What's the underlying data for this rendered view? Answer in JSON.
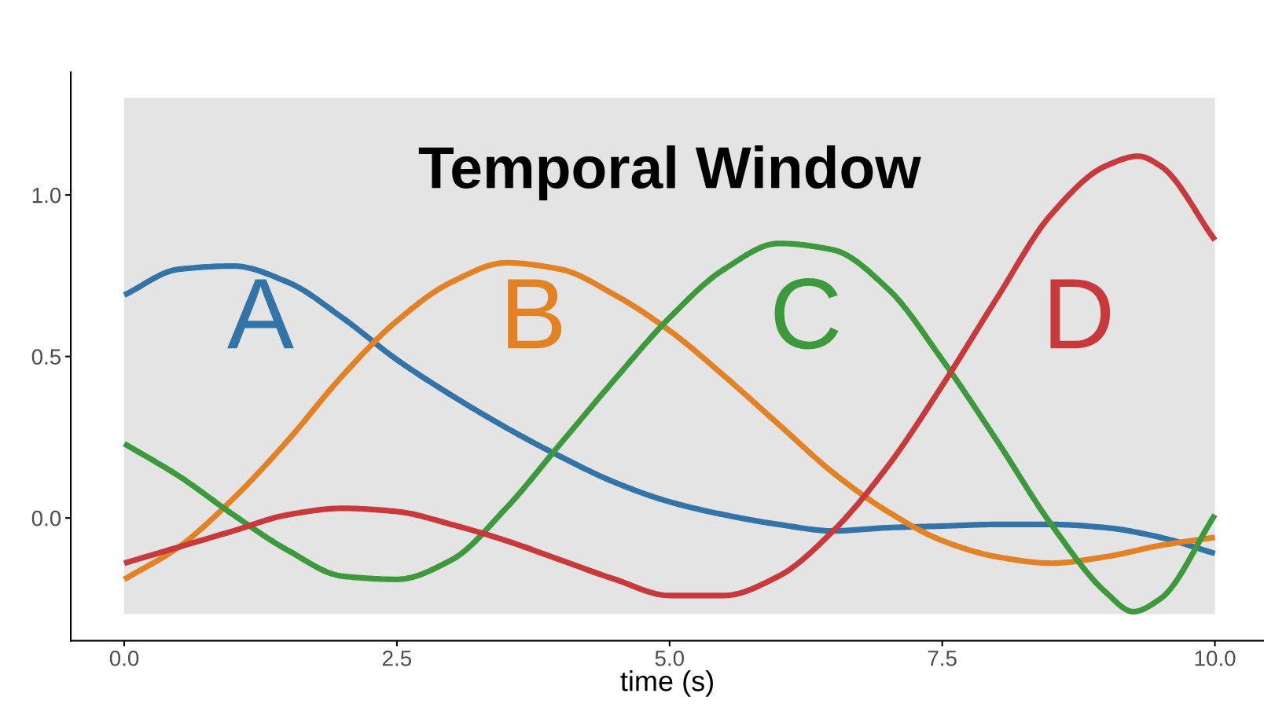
{
  "chart_data": {
    "type": "line",
    "xlabel": "time (s)",
    "x": [
      0,
      0.5,
      1,
      1.5,
      2,
      2.5,
      3,
      3.5,
      4,
      4.5,
      5,
      5.5,
      6,
      6.5,
      7,
      7.5,
      8,
      8.5,
      9,
      9.5,
      10
    ],
    "series": [
      {
        "name": "A",
        "color": "#3274a8",
        "values": [
          0.69,
          0.77,
          0.78,
          0.73,
          0.62,
          0.49,
          0.38,
          0.28,
          0.19,
          0.11,
          0.05,
          0.01,
          -0.02,
          -0.04,
          -0.03,
          -0.025,
          -0.02,
          -0.02,
          -0.03,
          -0.06,
          -0.11
        ]
      },
      {
        "name": "B",
        "color": "#e38125",
        "values": [
          -0.19,
          -0.09,
          0.06,
          0.24,
          0.44,
          0.61,
          0.73,
          0.79,
          0.77,
          0.69,
          0.58,
          0.44,
          0.29,
          0.14,
          0.02,
          -0.07,
          -0.12,
          -0.14,
          -0.12,
          -0.085,
          -0.06
        ]
      },
      {
        "name": "C",
        "color": "#3d9a3c",
        "x": [
          0,
          0.5,
          1,
          1.5,
          2,
          2.5,
          3,
          3.5,
          4,
          4.5,
          5,
          5.5,
          6,
          6.5,
          7,
          7.5,
          8,
          8.5,
          9,
          9.25,
          9.5,
          10
        ],
        "values": [
          0.23,
          0.13,
          0.01,
          -0.1,
          -0.18,
          -0.19,
          -0.13,
          0.03,
          0.23,
          0.43,
          0.62,
          0.77,
          0.85,
          0.83,
          0.71,
          0.49,
          0.24,
          -0.02,
          -0.23,
          -0.29,
          -0.25,
          0.01
        ]
      },
      {
        "name": "D",
        "color": "#c8393b",
        "x": [
          0,
          0.5,
          1,
          1.5,
          2,
          2.5,
          3,
          3.5,
          4,
          4.5,
          5,
          5.5,
          6,
          6.5,
          7,
          7.5,
          8,
          8.5,
          9,
          9.3,
          9.5,
          10
        ],
        "values": [
          -0.14,
          -0.09,
          -0.04,
          0.01,
          0.03,
          0.02,
          -0.02,
          -0.07,
          -0.13,
          -0.19,
          -0.24,
          -0.24,
          -0.18,
          -0.04,
          0.16,
          0.41,
          0.68,
          0.94,
          1.09,
          1.12,
          1.09,
          0.86
        ]
      }
    ],
    "bands": [
      {
        "axis": "x",
        "from": 0,
        "to": 10,
        "label": "Temporal Window",
        "color": "#e4e4e4"
      }
    ],
    "xlim": [
      -0.49,
      10.45
    ],
    "ylim": [
      -0.38,
      1.38
    ],
    "xticks": [
      {
        "value": 0,
        "label": "0.0"
      },
      {
        "value": 2.5,
        "label": "2.5"
      },
      {
        "value": 5,
        "label": "5.0"
      },
      {
        "value": 7.5,
        "label": "7.5"
      },
      {
        "value": 10,
        "label": "10.0"
      }
    ],
    "yticks": [
      {
        "value": 0,
        "label": "0.0"
      },
      {
        "value": 0.5,
        "label": "0.5"
      },
      {
        "value": 1,
        "label": "1.0"
      }
    ],
    "grid": false,
    "legend": false,
    "line_style": "solid",
    "marker": "none"
  }
}
